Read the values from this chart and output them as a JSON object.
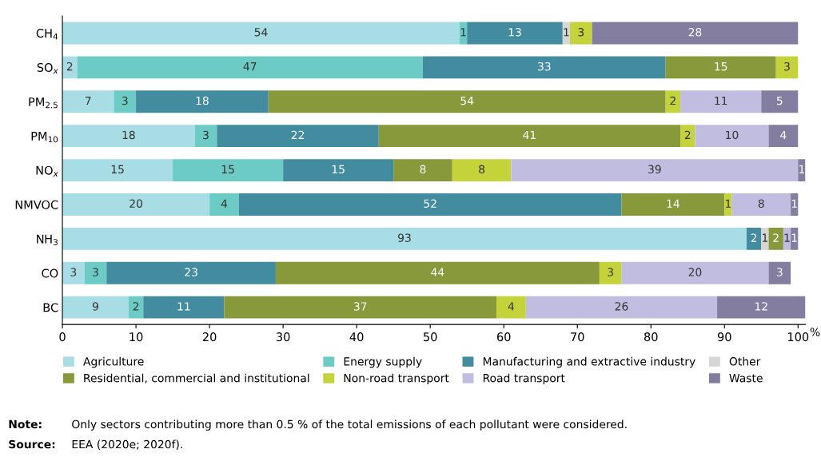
{
  "chart_data": {
    "type": "bar",
    "orientation": "horizontal",
    "stacked": true,
    "data_labels": true,
    "grid": false,
    "legend": "bottom",
    "categories": [
      "CH$_{4}$",
      "SO$_{x}$",
      "PM$_{2.5}$",
      "PM$_{10}$",
      "NO$_{x}$",
      "NMVOC",
      "NH$_{3}$",
      "CO",
      "BC"
    ],
    "series": [
      {
        "name": "Agriculture",
        "color": "#a8dde5",
        "values": [
          54,
          2,
          7,
          18,
          15,
          20,
          93,
          3,
          9
        ]
      },
      {
        "name": "Energy supply",
        "color": "#6ccbc4",
        "values": [
          1,
          47,
          3,
          3,
          15,
          4,
          null,
          3,
          2
        ]
      },
      {
        "name": "Manufacturing and extractive industry",
        "color": "#438ca0",
        "values": [
          13,
          33,
          18,
          22,
          15,
          52,
          2,
          23,
          11
        ]
      },
      {
        "name": "Other",
        "color": "#d6d6d6",
        "values": [
          1,
          null,
          null,
          null,
          null,
          null,
          1,
          null,
          null
        ]
      },
      {
        "name": "Residential, commercial and institutional",
        "color": "#87993a",
        "values": [
          null,
          15,
          54,
          41,
          8,
          14,
          2,
          44,
          37
        ]
      },
      {
        "name": "Non-road transport",
        "color": "#c5d33b",
        "values": [
          3,
          3,
          2,
          2,
          8,
          1,
          null,
          3,
          4
        ]
      },
      {
        "name": "Road transport",
        "color": "#c0bde0",
        "values": [
          null,
          null,
          11,
          10,
          39,
          8,
          1,
          20,
          26
        ]
      },
      {
        "name": "Waste",
        "color": "#837ea0",
        "values": [
          28,
          null,
          5,
          4,
          1,
          1,
          1,
          3,
          12
        ]
      }
    ],
    "xlim": [
      0,
      101
    ],
    "xticks": [
      0,
      10,
      20,
      30,
      40,
      50,
      60,
      70,
      80,
      90,
      100
    ],
    "xlabel": "%",
    "annotations": [
      "Note:",
      "Only sectors contributing more than 0.5 % of the total emissions of each pollutant were considered.",
      "Source:",
      "EEA (2020e; 2020f)."
    ]
  }
}
